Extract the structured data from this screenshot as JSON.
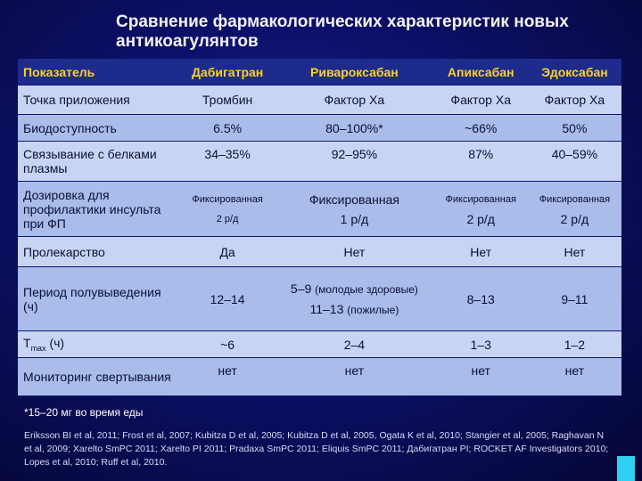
{
  "title": "Сравнение фармакологических характеристик новых антикоагулянтов",
  "headers": [
    "Показатель",
    "Дабигатран",
    "Ривароксабан",
    "Апиксабан",
    "Эдоксабан"
  ],
  "rows": {
    "target": [
      "Точка приложения",
      "Тромбин",
      "Фактор Ха",
      "Фактор Ха",
      "Фактор Ха"
    ],
    "bioavailability": [
      "Биодоступность",
      "6.5%",
      "80–100%*",
      "~66%",
      "50%"
    ],
    "protein_binding": [
      "Связывание с белками плазмы",
      "34–35%",
      "92–95%",
      "87%",
      "40–59%"
    ],
    "dosing": {
      "label": "Дозировка для профилактики инсульта при ФП",
      "fixed": "Фиксированная",
      "d1": "2 р/д",
      "d2": "1 р/д",
      "d3": "2 р/д",
      "d4": "2 р/д"
    },
    "prodrug": [
      "Пролекарство",
      "Да",
      "Нет",
      "Нет",
      "Нет"
    ],
    "half_life": {
      "label": "Период полувыведения (ч)",
      "d1": "12–14",
      "d2_young_value": "5–9",
      "d2_young_note": "(молодые здоровые)",
      "d2_old_value": "11–13",
      "d2_old_note": "(пожилые)",
      "d3": "8–13",
      "d4": "9–11"
    },
    "tmax": {
      "label_t": "T",
      "label_sub": "max",
      "label_unit": "(ч)",
      "values": [
        "~6",
        "2–4",
        "1–3",
        "1–2"
      ]
    },
    "monitoring": [
      "Мониторинг свертывания",
      "нет",
      "нет",
      "нет",
      "нет"
    ]
  },
  "footnote": "*15–20 мг во время еды",
  "references": "Eriksson BI et al, 2011; Frost et al, 2007; Kubitza D et al, 2005; Kubitza D et al, 2005, Ogata K et al, 2010; Stangier et al, 2005; Raghavan N et al, 2009; Xarelto SmPC 2011; Xarelto PI 2011; Pradaxa SmPC 2011; Eliquis SmPC 2011; Дабигатран PI; ROCKET AF Investigators 2010; Lopes et al, 2010; Ruff et al, 2010."
}
